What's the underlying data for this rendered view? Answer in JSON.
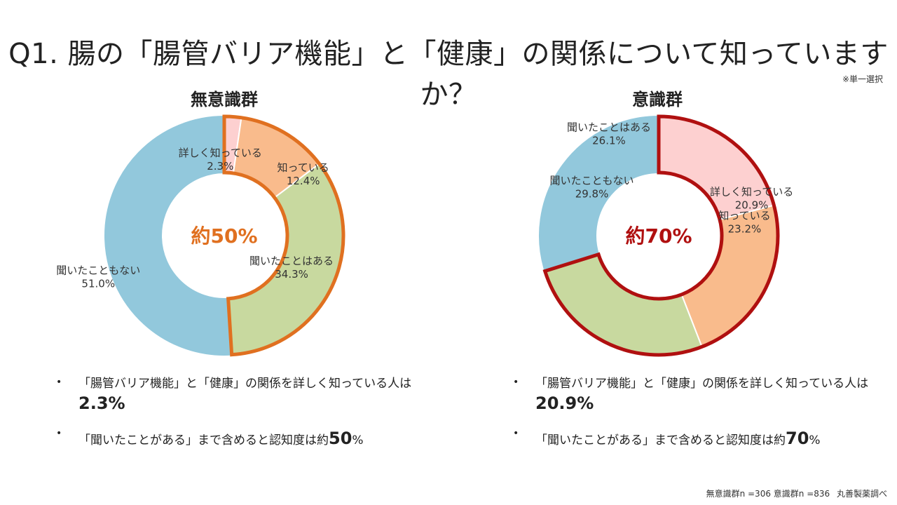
{
  "title": "Q1.  腸の「腸管バリア機能」と「健康」の関係について知っていますか？",
  "note": "※単一選択",
  "colors": {
    "detail": "#fdd0d0",
    "know": "#f9bb8c",
    "heard": "#c8d99f",
    "never": "#92c8dc",
    "accent_left": "#e07020",
    "accent_right": "#b01010"
  },
  "chart_data": [
    {
      "type": "pie",
      "title": "無意識群",
      "center_label": "約50%",
      "categories": [
        "詳しく知っている",
        "知っている",
        "聞いたことはある",
        "聞いたこともない"
      ],
      "values": [
        2.3,
        12.4,
        34.3,
        51.0
      ],
      "value_labels": [
        "2.3%",
        "12.4%",
        "34.3%",
        "51.0%"
      ],
      "highlighted": [
        "詳しく知っている",
        "知っている",
        "聞いたことはある"
      ]
    },
    {
      "type": "pie",
      "title": "意識群",
      "center_label": "約70%",
      "categories": [
        "詳しく知っている",
        "知っている",
        "聞いたことはある",
        "聞いたこともない"
      ],
      "values": [
        20.9,
        23.2,
        26.1,
        29.8
      ],
      "value_labels": [
        "20.9%",
        "23.2%",
        "26.1%",
        "29.8%"
      ],
      "highlighted": [
        "詳しく知っている",
        "知っている",
        "聞いたことはある"
      ]
    }
  ],
  "bullets": {
    "left": {
      "line1": "「腸管バリア機能」と「健康」の関係を詳しく知っている人は",
      "line1_value": "2.3%",
      "line2_prefix": "「聞いたことがある」まで含めると認知度は約",
      "line2_value": "50",
      "line2_suffix": "%"
    },
    "right": {
      "line1": "「腸管バリア機能」と「健康」の関係を詳しく知っている人は",
      "line1_value": "20.9%",
      "line2_prefix": "「聞いたことがある」まで含めると認知度は約",
      "line2_value": "70",
      "line2_suffix": "%"
    }
  },
  "footer": {
    "sample": "無意識群n =306 意識群n =836",
    "source": "丸善製薬調べ"
  }
}
